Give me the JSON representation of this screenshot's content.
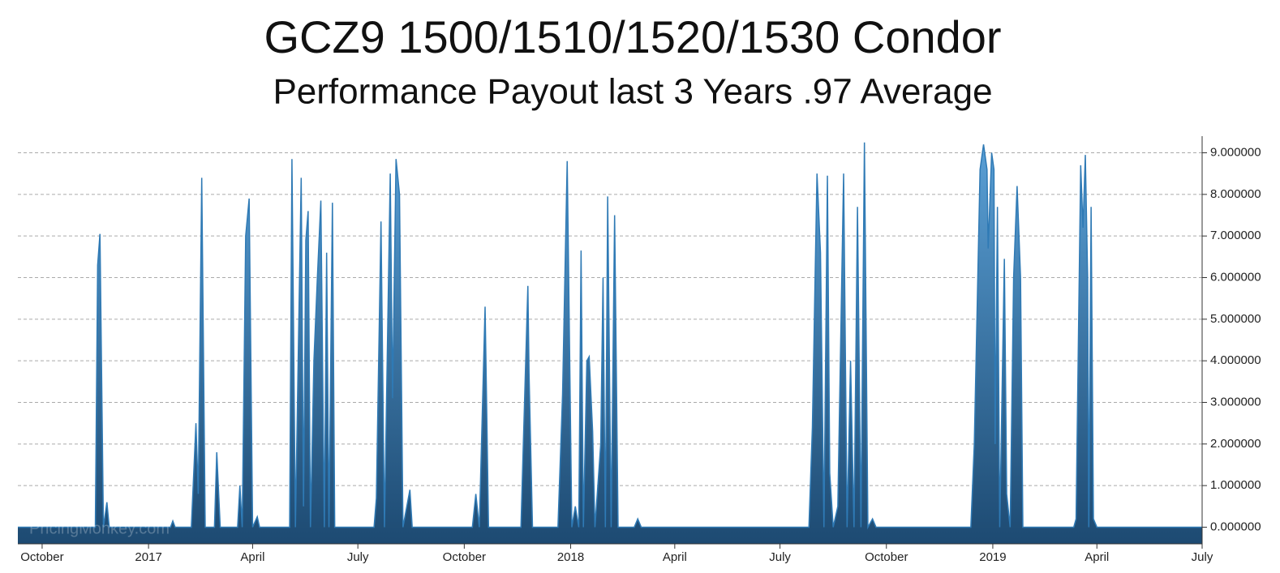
{
  "chart_data": {
    "type": "area",
    "title": "GCZ9 1500/1510/1520/1530 Condor",
    "subtitle": "Performance Payout last 3 Years .97 Average",
    "watermark": "PricingMonkey.com",
    "color": "#2f7ab5",
    "grid": true,
    "y_axis_side": "right",
    "xlim": [
      "2016-09-10",
      "2019-07-01"
    ],
    "ylim": [
      -0.4,
      9.4
    ],
    "xticks": [
      {
        "value": "2016-10-01",
        "label": "October"
      },
      {
        "value": "2017-01-01",
        "label": "2017"
      },
      {
        "value": "2017-04-01",
        "label": "April"
      },
      {
        "value": "2017-07-01",
        "label": "July"
      },
      {
        "value": "2017-10-01",
        "label": "October"
      },
      {
        "value": "2018-01-01",
        "label": "2018"
      },
      {
        "value": "2018-04-01",
        "label": "April"
      },
      {
        "value": "2018-07-01",
        "label": "July"
      },
      {
        "value": "2018-10-01",
        "label": "October"
      },
      {
        "value": "2019-01-01",
        "label": "2019"
      },
      {
        "value": "2019-04-01",
        "label": "April"
      },
      {
        "value": "2019-07-01",
        "label": "July"
      }
    ],
    "yticks": [
      {
        "value": 0,
        "label": "0.000000"
      },
      {
        "value": 1,
        "label": "1.000000"
      },
      {
        "value": 2,
        "label": "2.000000"
      },
      {
        "value": 3,
        "label": "3.000000"
      },
      {
        "value": 4,
        "label": "4.000000"
      },
      {
        "value": 5,
        "label": "5.000000"
      },
      {
        "value": 6,
        "label": "6.000000"
      },
      {
        "value": 7,
        "label": "7.000000"
      },
      {
        "value": 8,
        "label": "8.000000"
      },
      {
        "value": 9,
        "label": "9.000000"
      }
    ],
    "x": [
      "2016-09-10",
      "2016-11-16",
      "2016-11-18",
      "2016-11-20",
      "2016-11-23",
      "2016-11-26",
      "2016-11-28",
      "2017-01-20",
      "2017-01-22",
      "2017-01-24",
      "2017-02-07",
      "2017-02-11",
      "2017-02-13",
      "2017-02-16",
      "2017-02-19",
      "2017-02-27",
      "2017-03-01",
      "2017-03-04",
      "2017-03-19",
      "2017-03-21",
      "2017-03-23",
      "2017-03-26",
      "2017-03-29",
      "2017-04-01",
      "2017-04-05",
      "2017-04-07",
      "2017-05-03",
      "2017-05-05",
      "2017-05-08",
      "2017-05-13",
      "2017-05-15",
      "2017-05-17",
      "2017-05-19",
      "2017-05-21",
      "2017-05-24",
      "2017-05-27",
      "2017-05-30",
      "2017-06-02",
      "2017-06-04",
      "2017-06-06",
      "2017-06-09",
      "2017-06-11",
      "2017-07-15",
      "2017-07-17",
      "2017-07-21",
      "2017-07-24",
      "2017-07-29",
      "2017-07-31",
      "2017-08-03",
      "2017-08-06",
      "2017-08-09",
      "2017-08-15",
      "2017-08-17",
      "2017-10-08",
      "2017-10-11",
      "2017-10-14",
      "2017-10-19",
      "2017-10-22",
      "2017-11-19",
      "2017-11-25",
      "2017-11-26",
      "2017-11-29",
      "2017-12-21",
      "2017-12-25",
      "2017-12-29",
      "2018-01-02",
      "2018-01-05",
      "2018-01-08",
      "2018-01-10",
      "2018-01-12",
      "2018-01-15",
      "2018-01-17",
      "2018-01-20",
      "2018-01-22",
      "2018-01-27",
      "2018-01-29",
      "2018-01-31",
      "2018-02-02",
      "2018-02-05",
      "2018-02-08",
      "2018-02-11",
      "2018-02-25",
      "2018-02-28",
      "2018-03-03",
      "2018-07-26",
      "2018-07-29",
      "2018-08-02",
      "2018-08-05",
      "2018-08-08",
      "2018-08-11",
      "2018-08-13",
      "2018-08-16",
      "2018-08-20",
      "2018-08-25",
      "2018-08-28",
      "2018-08-31",
      "2018-09-03",
      "2018-09-06",
      "2018-09-09",
      "2018-09-12",
      "2018-09-15",
      "2018-09-19",
      "2018-09-22",
      "2018-12-13",
      "2018-12-16",
      "2018-12-21",
      "2018-12-24",
      "2018-12-27",
      "2018-12-28",
      "2018-12-31",
      "2019-01-02",
      "2019-01-03",
      "2019-01-05",
      "2019-01-07",
      "2019-01-11",
      "2019-01-13",
      "2019-01-16",
      "2019-01-19",
      "2019-01-22",
      "2019-01-25",
      "2019-01-27",
      "2019-03-12",
      "2019-03-14",
      "2019-03-18",
      "2019-03-20",
      "2019-03-22",
      "2019-03-24",
      "2019-03-25",
      "2019-03-27",
      "2019-03-29",
      "2019-04-01",
      "2019-07-01"
    ],
    "values": [
      0,
      0,
      6.3,
      7.05,
      0,
      0.6,
      0,
      0,
      0.15,
      0,
      0,
      2.5,
      0.8,
      8.4,
      0,
      0,
      1.8,
      0,
      0,
      1.0,
      0,
      7.0,
      7.9,
      0,
      0.25,
      0,
      0,
      8.85,
      0,
      8.4,
      0.5,
      6.9,
      7.6,
      0,
      4.0,
      6.0,
      7.85,
      0,
      6.6,
      0,
      7.8,
      0,
      0,
      0.7,
      7.35,
      0,
      8.5,
      3.1,
      8.85,
      8.0,
      0,
      0.9,
      0,
      0,
      0.8,
      0,
      5.3,
      0,
      0,
      5.8,
      3.7,
      0,
      0,
      3.2,
      8.8,
      0,
      0.5,
      0,
      6.65,
      0,
      4.0,
      4.1,
      2.3,
      0,
      2.0,
      6.0,
      0,
      7.95,
      0,
      7.5,
      0,
      0,
      0.2,
      0,
      0,
      2.4,
      8.5,
      6.6,
      0,
      8.45,
      1.3,
      0,
      0.5,
      8.5,
      0,
      4.0,
      0,
      7.7,
      0,
      9.25,
      0,
      0.2,
      0,
      0,
      2.0,
      8.6,
      9.2,
      8.6,
      6.7,
      9.0,
      8.6,
      2.0,
      7.7,
      0,
      6.45,
      0.8,
      0,
      6.0,
      8.2,
      6.0,
      0,
      0,
      0.2,
      8.7,
      7.2,
      8.95,
      6.0,
      0,
      7.7,
      0.2,
      0,
      0
    ]
  }
}
